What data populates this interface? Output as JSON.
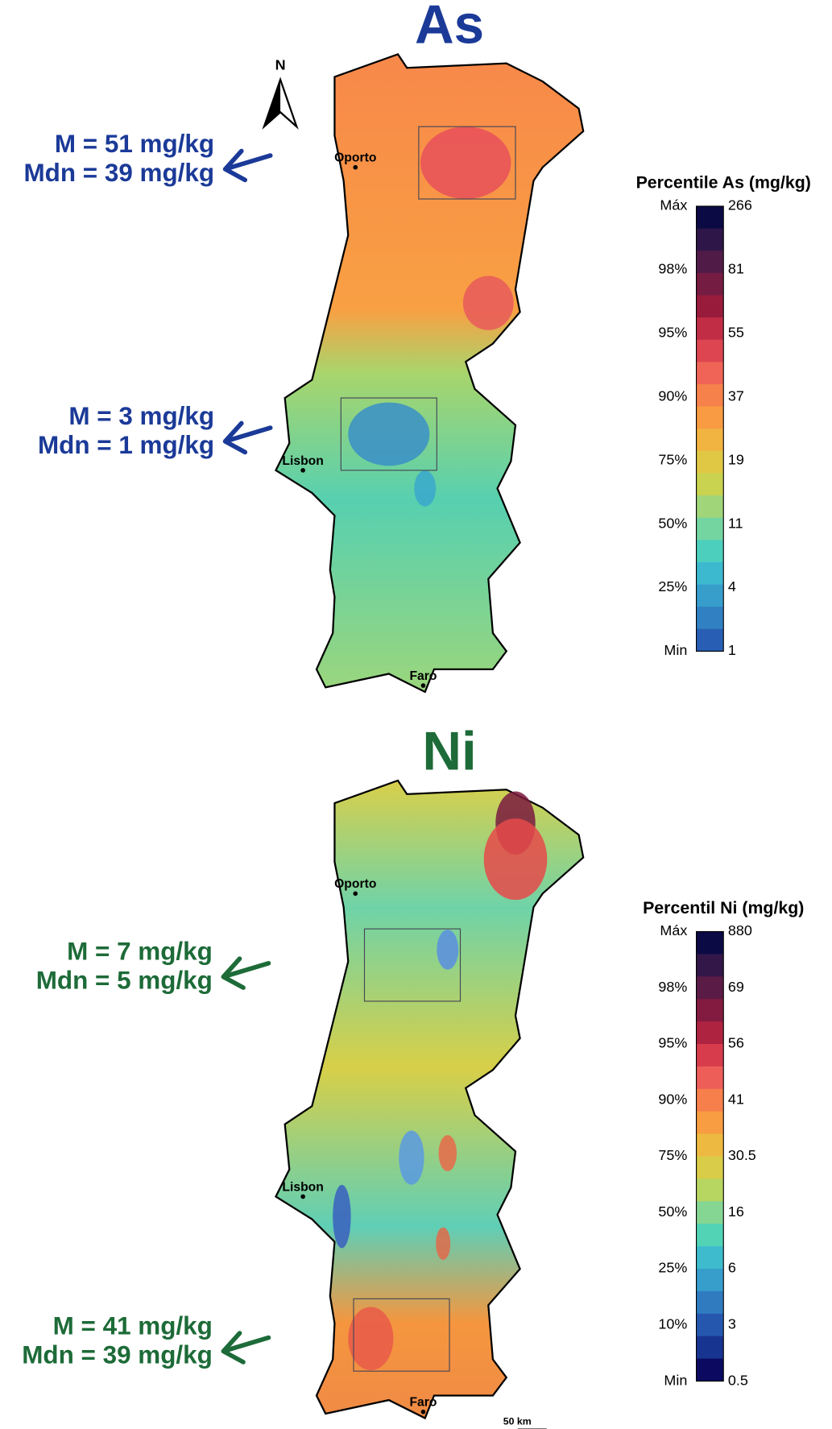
{
  "panels": [
    {
      "title": "As",
      "north": "N",
      "annotations": [
        [
          "M  = 51 mg/kg",
          "Mdn = 39 mg/kg"
        ],
        [
          "M = 3 mg/kg",
          "Mdn = 1 mg/kg"
        ]
      ],
      "cities": [
        "Oporto",
        "Lisbon",
        "Faro"
      ],
      "legend": {
        "title": "Percentile  As (mg/kg)",
        "percentiles": [
          "Máx",
          "98%",
          "95%",
          "90%",
          "75%",
          "50%",
          "25%",
          "Min"
        ],
        "values": [
          "266",
          "81",
          "55",
          "37",
          "19",
          "11",
          "4",
          "1"
        ]
      }
    },
    {
      "title": "Ni",
      "annotations": [
        [
          "M = 7 mg/kg",
          "Mdn = 5 mg/kg"
        ],
        [
          "M  = 41 mg/kg",
          "Mdn = 39 mg/kg"
        ]
      ],
      "cities": [
        "Oporto",
        "Lisbon",
        "Faro"
      ],
      "legend": {
        "title": "Percentil Ni (mg/kg)",
        "percentiles": [
          "Máx",
          "98%",
          "95%",
          "90%",
          "75%",
          "50%",
          "25%",
          "10%",
          "Min"
        ],
        "values": [
          "880",
          "69",
          "56",
          "41",
          "30.5",
          "16",
          "6",
          "3",
          "0.5"
        ]
      },
      "scale": "50 km"
    }
  ]
}
